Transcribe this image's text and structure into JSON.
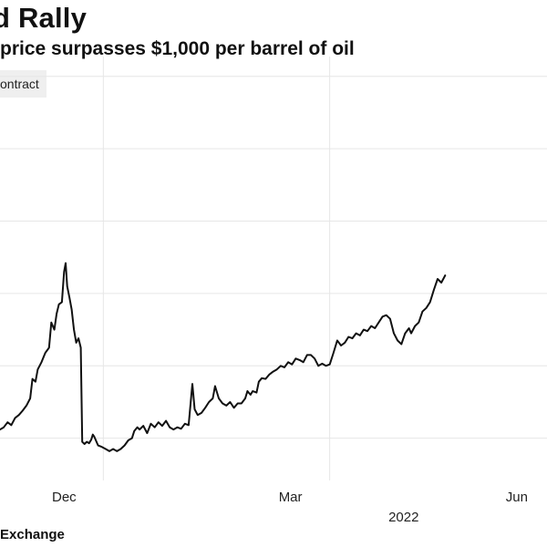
{
  "title": "d Rally",
  "subtitle": "price surpasses $1,000 per barrel of oil",
  "legend_label": "ontract",
  "source": "Exchange",
  "chart_data": {
    "type": "line",
    "title": "d Rally",
    "subtitle": "price surpasses $1,000 per barrel of oil",
    "xlabel": "",
    "ylabel": "",
    "grid": true,
    "x_ticks": [
      {
        "label": "Dec",
        "x": 1.0
      },
      {
        "label": "Mar",
        "x": 4.0
      },
      {
        "label": "Jun",
        "x": 7.0
      }
    ],
    "year_label": {
      "label": "2022",
      "x": 5.5
    },
    "xlim": [
      0.15,
      7.4
    ],
    "ylim": [
      0,
      6.3
    ],
    "y_gridlines": [
      1,
      2,
      3,
      4,
      5,
      6
    ],
    "line_color": "#111111",
    "series": [
      {
        "name": "",
        "points": [
          [
            0.15,
            1.12
          ],
          [
            0.2,
            1.15
          ],
          [
            0.25,
            1.22
          ],
          [
            0.3,
            1.18
          ],
          [
            0.35,
            1.28
          ],
          [
            0.4,
            1.32
          ],
          [
            0.45,
            1.38
          ],
          [
            0.5,
            1.45
          ],
          [
            0.55,
            1.55
          ],
          [
            0.58,
            1.82
          ],
          [
            0.62,
            1.78
          ],
          [
            0.65,
            1.95
          ],
          [
            0.7,
            2.05
          ],
          [
            0.75,
            2.18
          ],
          [
            0.8,
            2.25
          ],
          [
            0.83,
            2.6
          ],
          [
            0.87,
            2.5
          ],
          [
            0.9,
            2.72
          ],
          [
            0.93,
            2.85
          ],
          [
            0.97,
            2.88
          ],
          [
            1.0,
            3.3
          ],
          [
            1.02,
            3.42
          ],
          [
            1.04,
            3.1
          ],
          [
            1.07,
            2.95
          ],
          [
            1.1,
            2.78
          ],
          [
            1.13,
            2.5
          ],
          [
            1.16,
            2.32
          ],
          [
            1.19,
            2.38
          ],
          [
            1.22,
            2.25
          ],
          [
            1.24,
            0.95
          ],
          [
            1.27,
            0.92
          ],
          [
            1.3,
            0.95
          ],
          [
            1.33,
            0.93
          ],
          [
            1.36,
            0.98
          ],
          [
            1.38,
            1.05
          ],
          [
            1.4,
            1.02
          ],
          [
            1.45,
            0.9
          ],
          [
            1.5,
            0.88
          ],
          [
            1.55,
            0.85
          ],
          [
            1.6,
            0.82
          ],
          [
            1.65,
            0.85
          ],
          [
            1.7,
            0.82
          ],
          [
            1.75,
            0.85
          ],
          [
            1.8,
            0.9
          ],
          [
            1.85,
            0.97
          ],
          [
            1.9,
            1.0
          ],
          [
            1.93,
            1.1
          ],
          [
            1.97,
            1.15
          ],
          [
            2.0,
            1.12
          ],
          [
            2.05,
            1.17
          ],
          [
            2.1,
            1.07
          ],
          [
            2.15,
            1.2
          ],
          [
            2.2,
            1.15
          ],
          [
            2.25,
            1.22
          ],
          [
            2.3,
            1.17
          ],
          [
            2.35,
            1.24
          ],
          [
            2.4,
            1.15
          ],
          [
            2.45,
            1.12
          ],
          [
            2.5,
            1.15
          ],
          [
            2.55,
            1.13
          ],
          [
            2.6,
            1.2
          ],
          [
            2.65,
            1.18
          ],
          [
            2.7,
            1.75
          ],
          [
            2.73,
            1.4
          ],
          [
            2.77,
            1.32
          ],
          [
            2.82,
            1.35
          ],
          [
            2.87,
            1.42
          ],
          [
            2.92,
            1.5
          ],
          [
            2.97,
            1.55
          ],
          [
            3.0,
            1.72
          ],
          [
            3.05,
            1.55
          ],
          [
            3.1,
            1.48
          ],
          [
            3.15,
            1.45
          ],
          [
            3.2,
            1.5
          ],
          [
            3.25,
            1.42
          ],
          [
            3.3,
            1.48
          ],
          [
            3.35,
            1.48
          ],
          [
            3.4,
            1.55
          ],
          [
            3.43,
            1.65
          ],
          [
            3.47,
            1.6
          ],
          [
            3.5,
            1.65
          ],
          [
            3.55,
            1.63
          ],
          [
            3.58,
            1.78
          ],
          [
            3.62,
            1.83
          ],
          [
            3.67,
            1.82
          ],
          [
            3.72,
            1.88
          ],
          [
            3.77,
            1.92
          ],
          [
            3.82,
            1.95
          ],
          [
            3.87,
            2.0
          ],
          [
            3.92,
            1.98
          ],
          [
            3.97,
            2.05
          ],
          [
            4.02,
            2.02
          ],
          [
            4.07,
            2.1
          ],
          [
            4.12,
            2.08
          ],
          [
            4.17,
            2.05
          ],
          [
            4.22,
            2.15
          ],
          [
            4.27,
            2.15
          ],
          [
            4.32,
            2.1
          ],
          [
            4.37,
            2.0
          ],
          [
            4.42,
            2.03
          ],
          [
            4.47,
            2.0
          ],
          [
            4.52,
            2.02
          ],
          [
            4.57,
            2.18
          ],
          [
            4.62,
            2.35
          ],
          [
            4.67,
            2.28
          ],
          [
            4.72,
            2.32
          ],
          [
            4.77,
            2.4
          ],
          [
            4.82,
            2.38
          ],
          [
            4.87,
            2.45
          ],
          [
            4.92,
            2.42
          ],
          [
            4.97,
            2.5
          ],
          [
            5.02,
            2.48
          ],
          [
            5.07,
            2.55
          ],
          [
            5.12,
            2.52
          ],
          [
            5.17,
            2.6
          ],
          [
            5.22,
            2.68
          ],
          [
            5.27,
            2.7
          ],
          [
            5.32,
            2.65
          ],
          [
            5.37,
            2.45
          ],
          [
            5.42,
            2.35
          ],
          [
            5.47,
            2.3
          ],
          [
            5.52,
            2.45
          ],
          [
            5.57,
            2.52
          ],
          [
            5.6,
            2.45
          ],
          [
            5.65,
            2.55
          ],
          [
            5.7,
            2.6
          ],
          [
            5.75,
            2.75
          ],
          [
            5.8,
            2.8
          ],
          [
            5.85,
            2.88
          ],
          [
            5.9,
            3.05
          ],
          [
            5.95,
            3.2
          ],
          [
            6.0,
            3.15
          ],
          [
            6.05,
            3.25
          ]
        ]
      }
    ]
  }
}
